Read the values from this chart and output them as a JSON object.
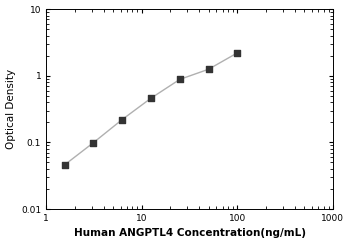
{
  "x": [
    1.563,
    3.125,
    6.25,
    12.5,
    25,
    50,
    100
  ],
  "y": [
    0.046,
    0.099,
    0.22,
    0.46,
    0.88,
    1.25,
    2.2
  ],
  "xlabel": "Human ANGPTL4 Concentration(ng/mL)",
  "ylabel": "Optical Density",
  "xlim": [
    1,
    1000
  ],
  "ylim": [
    0.01,
    10
  ],
  "xticks": [
    1,
    10,
    100,
    1000
  ],
  "yticks": [
    0.01,
    0.1,
    1,
    10
  ],
  "line_color": "#b0b0b0",
  "marker_color": "#333333",
  "background_color": "#ffffff",
  "label_fontsize": 7.5
}
